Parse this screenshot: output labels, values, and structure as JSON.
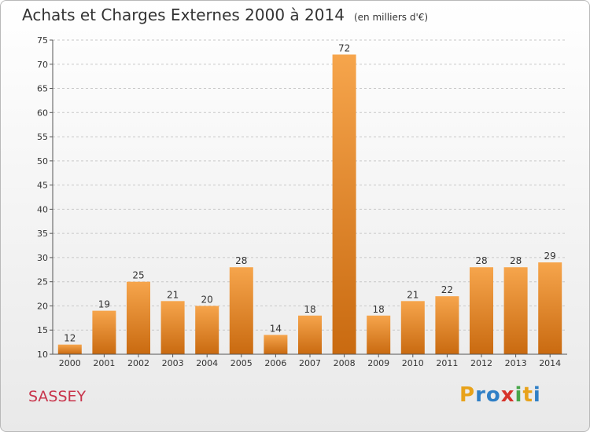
{
  "chart_data": {
    "type": "bar",
    "title": "Achats et Charges Externes 2000 à 2014",
    "subtitle": "(en milliers d'€)",
    "categories": [
      "2000",
      "2001",
      "2002",
      "2003",
      "2004",
      "2005",
      "2006",
      "2007",
      "2008",
      "2009",
      "2010",
      "2011",
      "2012",
      "2013",
      "2014"
    ],
    "values": [
      12,
      19,
      25,
      21,
      20,
      28,
      14,
      18,
      72,
      18,
      21,
      22,
      28,
      28,
      29
    ],
    "ylim": [
      10,
      75
    ],
    "yticks": [
      10,
      15,
      20,
      25,
      30,
      35,
      40,
      45,
      50,
      55,
      60,
      65,
      70,
      75
    ],
    "grid": true,
    "colors": {
      "bar_light": "#f6a54c",
      "bar_dark": "#c96a10",
      "grid": "#c8c8c8",
      "axis": "#555555"
    }
  },
  "footer": {
    "town": "SASSEY"
  },
  "logo": {
    "letters": [
      "P",
      "r",
      "o",
      "x",
      "i",
      "t",
      "i"
    ]
  }
}
